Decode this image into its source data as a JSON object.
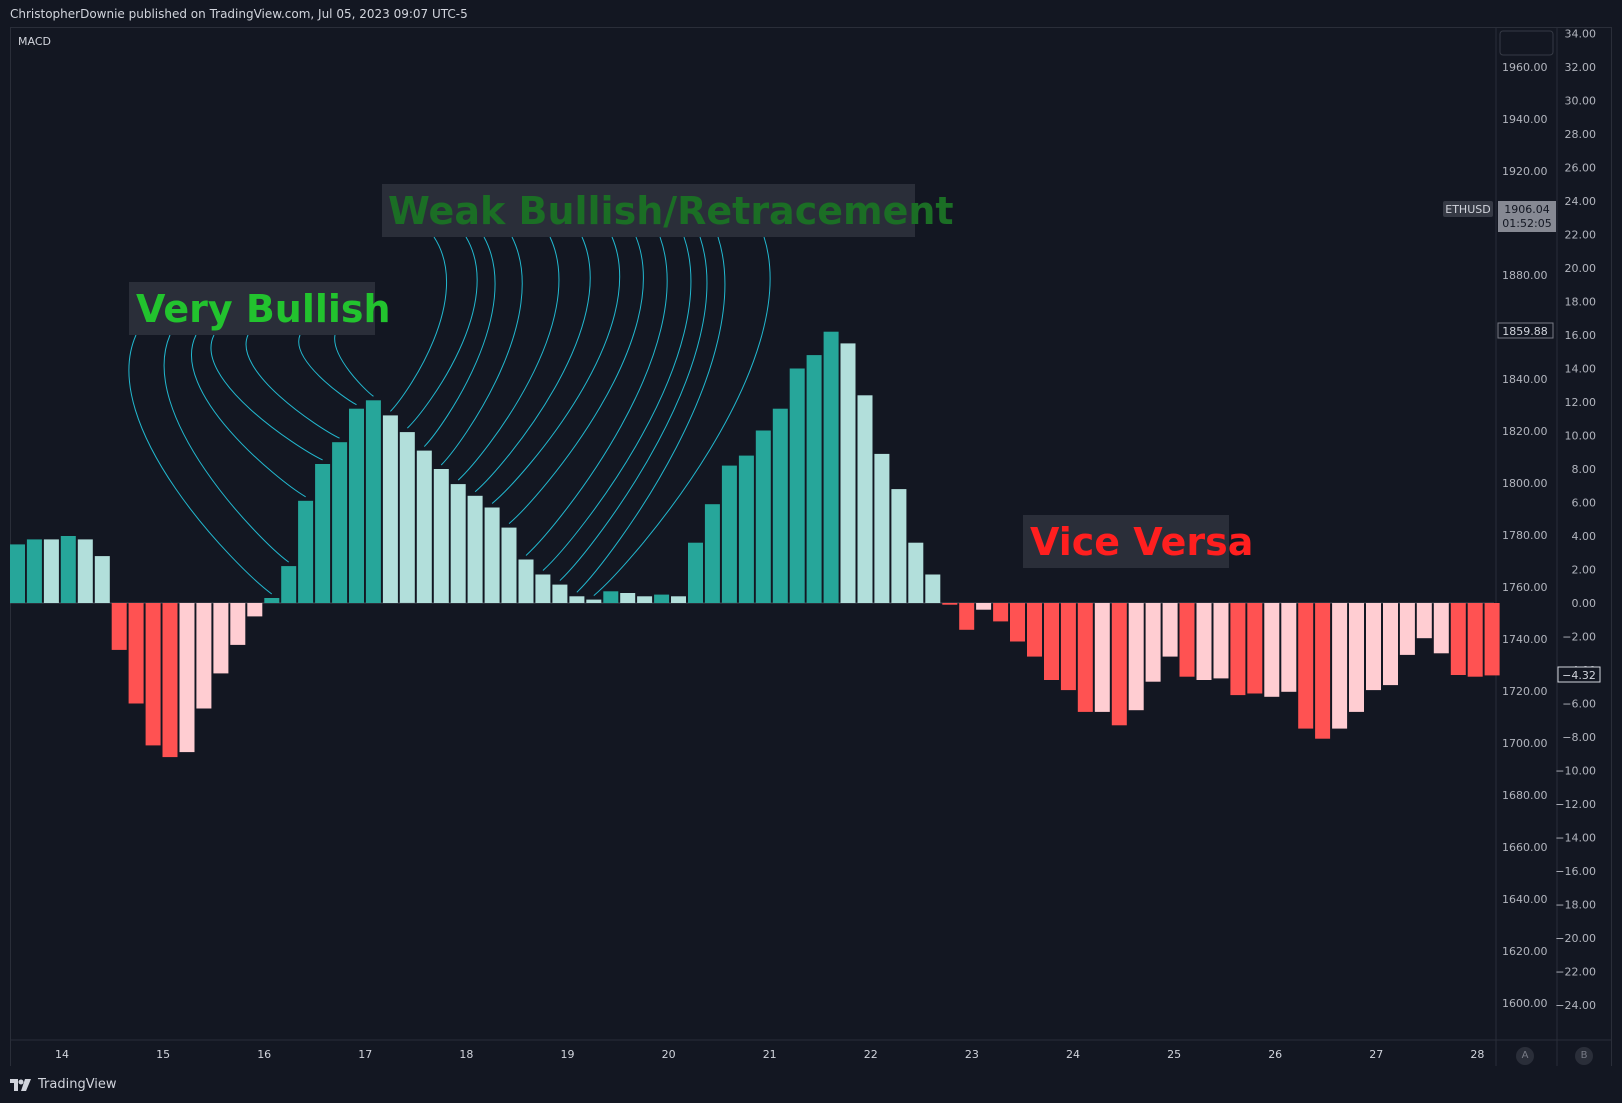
{
  "header": {
    "publish_line": "ChristopherDownie published on TradingView.com, Jul 05, 2023 09:07 UTC-5"
  },
  "indicator": {
    "label": "MACD"
  },
  "footer": {
    "brand": "TradingView"
  },
  "axis_buttons": {
    "a": "A",
    "b": "B"
  },
  "price_axis": {
    "labels": [
      "1960.00",
      "1940.00",
      "1920.00",
      "1880.00",
      "1840.00",
      "1820.00",
      "1800.00",
      "1780.00",
      "1760.00",
      "1740.00",
      "1720.00",
      "1700.00",
      "1680.00",
      "1660.00",
      "1640.00",
      "1620.00",
      "1600.00"
    ],
    "symbol_tag": "ETHUSD",
    "last_price": "1906.04",
    "countdown": "01:52:05",
    "marker_price": "1859.88"
  },
  "macd_axis": {
    "labels": [
      "34.00",
      "32.00",
      "30.00",
      "28.00",
      "26.00",
      "24.00",
      "22.00",
      "20.00",
      "18.00",
      "16.00",
      "14.00",
      "12.00",
      "10.00",
      "8.00",
      "6.00",
      "4.00",
      "2.00",
      "0.00",
      "−2.00",
      "−4.00",
      "−6.00",
      "−8.00",
      "−10.00",
      "−12.00",
      "−14.00",
      "−16.00",
      "−18.00",
      "−20.00",
      "−22.00",
      "−24.00"
    ],
    "current_value": "−4.32"
  },
  "time_axis": {
    "labels": [
      "14",
      "15",
      "16",
      "17",
      "18",
      "19",
      "20",
      "21",
      "22",
      "23",
      "24",
      "25",
      "26",
      "27",
      "28"
    ]
  },
  "colors": {
    "strong_bull": "#26a69a",
    "weak_bull": "#b2dfdb",
    "strong_bear": "#ff5252",
    "weak_bear": "#ffcdd2",
    "connector": "#22b8cf",
    "background": "#131722"
  },
  "chart_data": {
    "type": "bar",
    "title": "MACD",
    "ylim": [
      -25,
      35
    ],
    "series": [
      {
        "values": [
          3.5,
          3.8,
          3.8,
          4.0,
          3.8,
          2.8,
          -2.8,
          -6.0,
          -8.5,
          -9.2,
          -8.9,
          -6.3,
          -4.2,
          -2.5,
          -0.8,
          0.3,
          2.2,
          6.1,
          8.3,
          9.6,
          11.6,
          12.1,
          11.2,
          10.2,
          9.1,
          8.0,
          7.1,
          6.4,
          5.7,
          4.5,
          2.6,
          1.7,
          1.1,
          0.4,
          0.2,
          0.7,
          0.6,
          0.4,
          0.5,
          0.4,
          3.6,
          5.9,
          8.2,
          8.8,
          10.3,
          11.6,
          14.0,
          14.8,
          16.2,
          15.5,
          12.4,
          8.9,
          6.8,
          3.6,
          1.7,
          -0.1,
          -1.6,
          -0.4,
          -1.1,
          -2.3,
          -3.2,
          -4.6,
          -5.2,
          -6.5,
          -6.5,
          -7.3,
          -6.4,
          -4.7,
          -3.2,
          -4.4,
          -4.6,
          -4.5,
          -5.5,
          -5.4,
          -5.6,
          -5.3,
          -7.5,
          -8.1,
          -7.5,
          -6.5,
          -5.2,
          -4.9,
          -3.1,
          -2.1,
          -3.0,
          -4.3,
          -4.4,
          -4.32
        ],
        "strength": [
          "s",
          "s",
          "w",
          "s",
          "w",
          "w",
          "s",
          "s",
          "s",
          "s",
          "w",
          "w",
          "w",
          "w",
          "w",
          "s",
          "s",
          "s",
          "s",
          "s",
          "s",
          "s",
          "w",
          "w",
          "w",
          "w",
          "w",
          "w",
          "w",
          "w",
          "w",
          "w",
          "w",
          "w",
          "w",
          "s",
          "w",
          "w",
          "s",
          "w",
          "s",
          "s",
          "s",
          "s",
          "s",
          "s",
          "s",
          "s",
          "s",
          "w",
          "w",
          "w",
          "w",
          "w",
          "w",
          "s",
          "s",
          "w",
          "s",
          "s",
          "s",
          "s",
          "s",
          "s",
          "w",
          "s",
          "w",
          "w",
          "w",
          "s",
          "w",
          "w",
          "s",
          "s",
          "w",
          "w",
          "s",
          "s",
          "w",
          "w",
          "w",
          "w",
          "w",
          "w",
          "w",
          "s",
          "s",
          "s"
        ]
      }
    ],
    "annotations": [
      {
        "text": "Very Bullish",
        "color": "#22c32e"
      },
      {
        "text": "Weak Bullish/Retracement",
        "color": "#1b6e25"
      },
      {
        "text": "Vice Versa",
        "color": "#ff1f1f"
      }
    ]
  }
}
